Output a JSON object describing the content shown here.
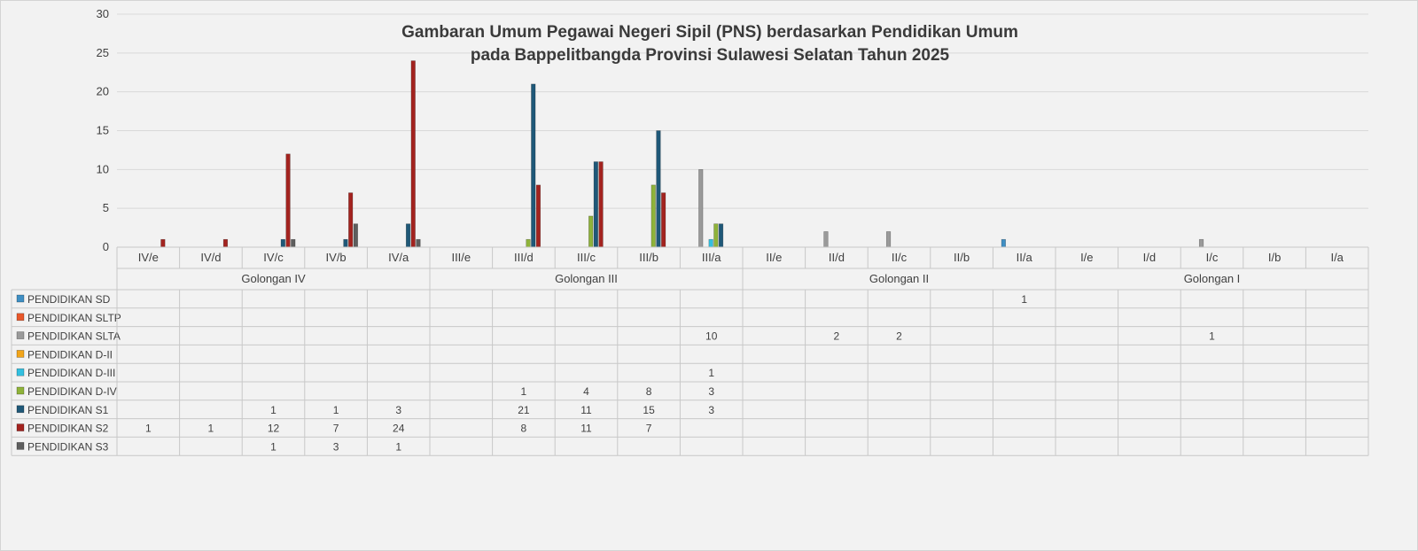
{
  "chart_data": {
    "type": "bar",
    "title_lines": [
      "Gambaran Umum Pegawai Negeri Sipil (PNS) berdasarkan Pendidikan Umum",
      "pada Bappelitbangda Provinsi Sulawesi Selatan Tahun 2025"
    ],
    "xlabel": "",
    "ylabel": "",
    "ylim": [
      0,
      30
    ],
    "yticks": [
      0,
      5,
      10,
      15,
      20,
      25,
      30
    ],
    "grid": true,
    "legend": "data-table",
    "categories": [
      "IV/e",
      "IV/d",
      "IV/c",
      "IV/b",
      "IV/a",
      "III/e",
      "III/d",
      "III/c",
      "III/b",
      "III/a",
      "II/e",
      "II/d",
      "II/c",
      "II/b",
      "II/a",
      "I/e",
      "I/d",
      "I/c",
      "I/b",
      "I/a"
    ],
    "groups": [
      {
        "name": "Golongan IV",
        "count": 5
      },
      {
        "name": "Golongan III",
        "count": 5
      },
      {
        "name": "Golongan II",
        "count": 5
      },
      {
        "name": "Golongan I",
        "count": 5
      }
    ],
    "series": [
      {
        "name": "PENDIDIKAN SD",
        "color": "#3f8fc4",
        "values": [
          null,
          null,
          null,
          null,
          null,
          null,
          null,
          null,
          null,
          null,
          null,
          null,
          null,
          null,
          1,
          null,
          null,
          null,
          null,
          null
        ]
      },
      {
        "name": "PENDIDIKAN SLTP",
        "color": "#e8572a",
        "values": [
          null,
          null,
          null,
          null,
          null,
          null,
          null,
          null,
          null,
          null,
          null,
          null,
          null,
          null,
          null,
          null,
          null,
          null,
          null,
          null
        ]
      },
      {
        "name": "PENDIDIKAN SLTA",
        "color": "#9a9a9a",
        "values": [
          null,
          null,
          null,
          null,
          null,
          null,
          null,
          null,
          null,
          10,
          null,
          2,
          2,
          null,
          null,
          null,
          null,
          1,
          null,
          null
        ]
      },
      {
        "name": "PENDIDIKAN D-II",
        "color": "#f2a51a",
        "values": [
          null,
          null,
          null,
          null,
          null,
          null,
          null,
          null,
          null,
          null,
          null,
          null,
          null,
          null,
          null,
          null,
          null,
          null,
          null,
          null
        ]
      },
      {
        "name": "PENDIDIKAN D-III",
        "color": "#33c0e0",
        "values": [
          null,
          null,
          null,
          null,
          null,
          null,
          null,
          null,
          null,
          1,
          null,
          null,
          null,
          null,
          null,
          null,
          null,
          null,
          null,
          null
        ]
      },
      {
        "name": "PENDIDIKAN D-IV",
        "color": "#8fb33a",
        "values": [
          null,
          null,
          null,
          null,
          null,
          null,
          1,
          4,
          8,
          3,
          null,
          null,
          null,
          null,
          null,
          null,
          null,
          null,
          null,
          null
        ]
      },
      {
        "name": "PENDIDIKAN S1",
        "color": "#1f5878",
        "values": [
          null,
          null,
          1,
          1,
          3,
          null,
          21,
          11,
          15,
          3,
          null,
          null,
          null,
          null,
          null,
          null,
          null,
          null,
          null,
          null
        ]
      },
      {
        "name": "PENDIDIKAN S2",
        "color": "#a3231f",
        "values": [
          1,
          1,
          12,
          7,
          24,
          null,
          8,
          11,
          7,
          null,
          null,
          null,
          null,
          null,
          null,
          null,
          null,
          null,
          null,
          null
        ]
      },
      {
        "name": "PENDIDIKAN S3",
        "color": "#5e5e5e",
        "values": [
          null,
          null,
          1,
          3,
          1,
          null,
          null,
          null,
          null,
          null,
          null,
          null,
          null,
          null,
          null,
          null,
          null,
          null,
          null,
          null
        ]
      }
    ]
  }
}
